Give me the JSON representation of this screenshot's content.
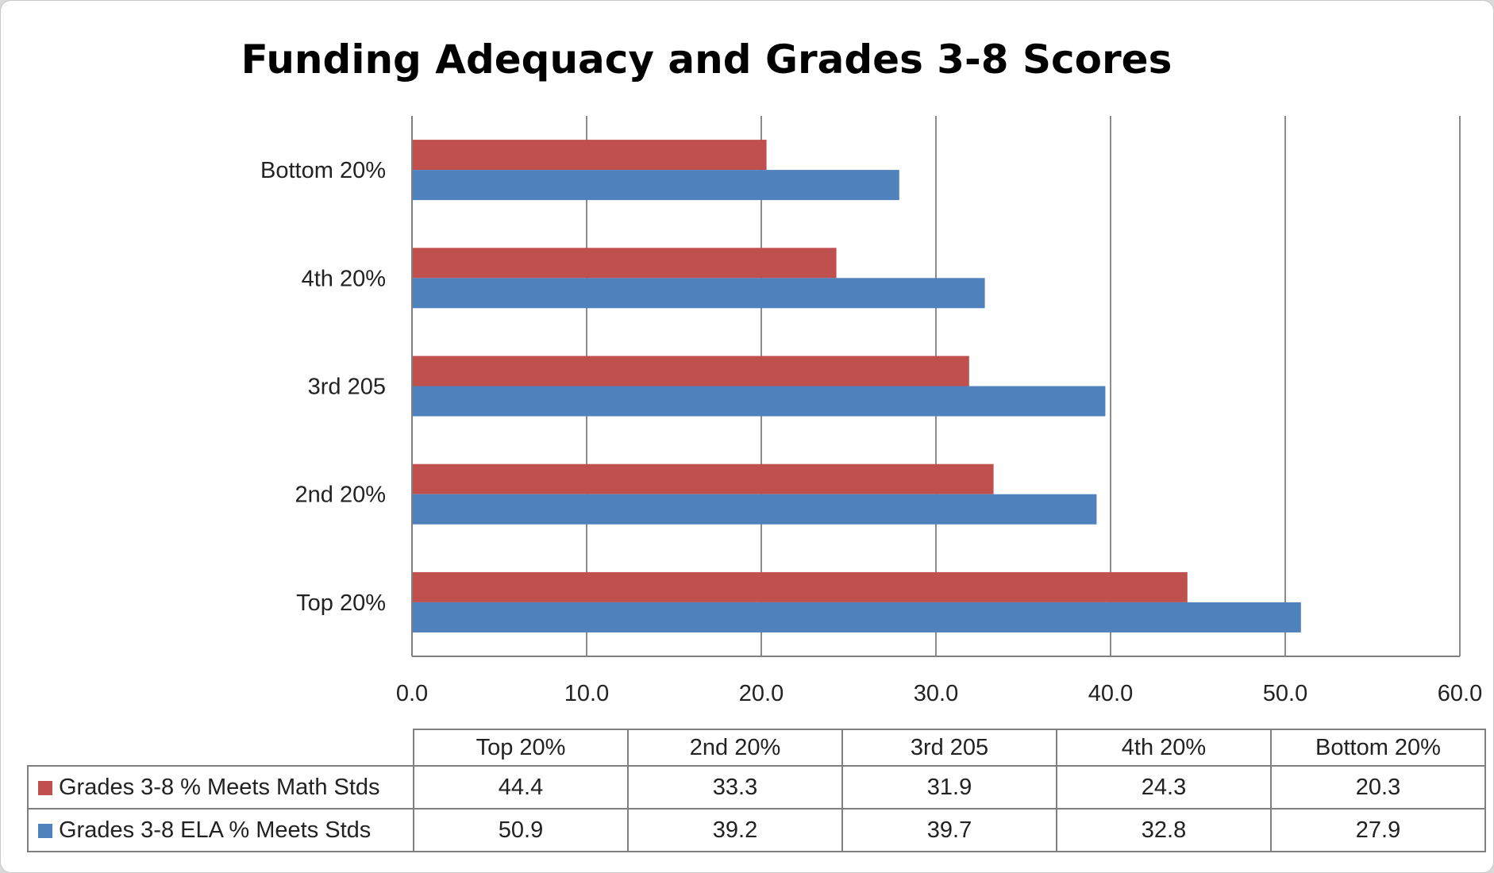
{
  "chart_data": {
    "type": "bar",
    "orientation": "horizontal",
    "title": "Funding Adequacy and Grades 3-8 Scores",
    "categories": [
      "Top 20%",
      "2nd 20%",
      "3rd 205",
      "4th 20%",
      "Bottom 20%"
    ],
    "series": [
      {
        "name": "Grades 3-8 % Meets Math Stds",
        "color": "#c0504d",
        "values": [
          44.4,
          33.3,
          31.9,
          24.3,
          20.3
        ]
      },
      {
        "name": "Grades 3-8 ELA % Meets Stds",
        "color": "#4f81bd",
        "values": [
          50.9,
          39.2,
          39.7,
          32.8,
          27.9
        ]
      }
    ],
    "xlim": [
      0,
      60
    ],
    "x_ticks": [
      "0.0",
      "10.0",
      "20.0",
      "30.0",
      "40.0",
      "50.0",
      "60.0"
    ],
    "grid": "vertical",
    "data_table": true
  }
}
